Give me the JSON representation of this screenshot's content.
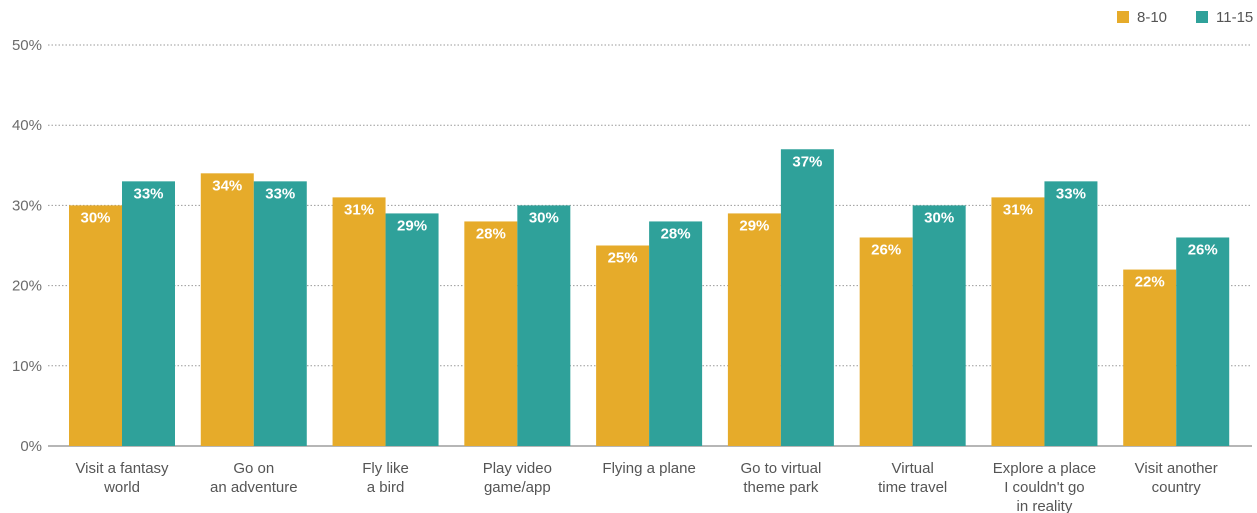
{
  "chart_data": {
    "type": "bar",
    "categories": [
      [
        "Visit a fantasy",
        "world"
      ],
      [
        "Go on",
        "an adventure"
      ],
      [
        "Fly like",
        "a bird"
      ],
      [
        "Play video",
        "game/app"
      ],
      [
        "Flying a plane"
      ],
      [
        "Go to virtual",
        "theme park"
      ],
      [
        "Virtual",
        "time travel"
      ],
      [
        "Explore a place",
        "I couldn't go",
        "in reality"
      ],
      [
        "Visit another",
        "country"
      ]
    ],
    "series": [
      {
        "name": "8-10",
        "color": "#e6ab2a",
        "values": [
          30,
          34,
          31,
          28,
          25,
          29,
          26,
          31,
          22
        ],
        "labels": [
          "30%",
          "34%",
          "31%",
          "28%",
          "25%",
          "29%",
          "26%",
          "31%",
          "22%"
        ]
      },
      {
        "name": "11-15",
        "color": "#2fa19a",
        "values": [
          33,
          33,
          29,
          30,
          28,
          37,
          30,
          33,
          26
        ],
        "labels": [
          "33%",
          "33%",
          "29%",
          "30%",
          "28%",
          "37%",
          "30%",
          "33%",
          "26%"
        ]
      }
    ],
    "y_ticks": [
      "0%",
      "10%",
      "20%",
      "30%",
      "40%",
      "50%"
    ],
    "ylim": [
      0,
      50
    ],
    "grid": true,
    "legend_position": "top-right"
  }
}
